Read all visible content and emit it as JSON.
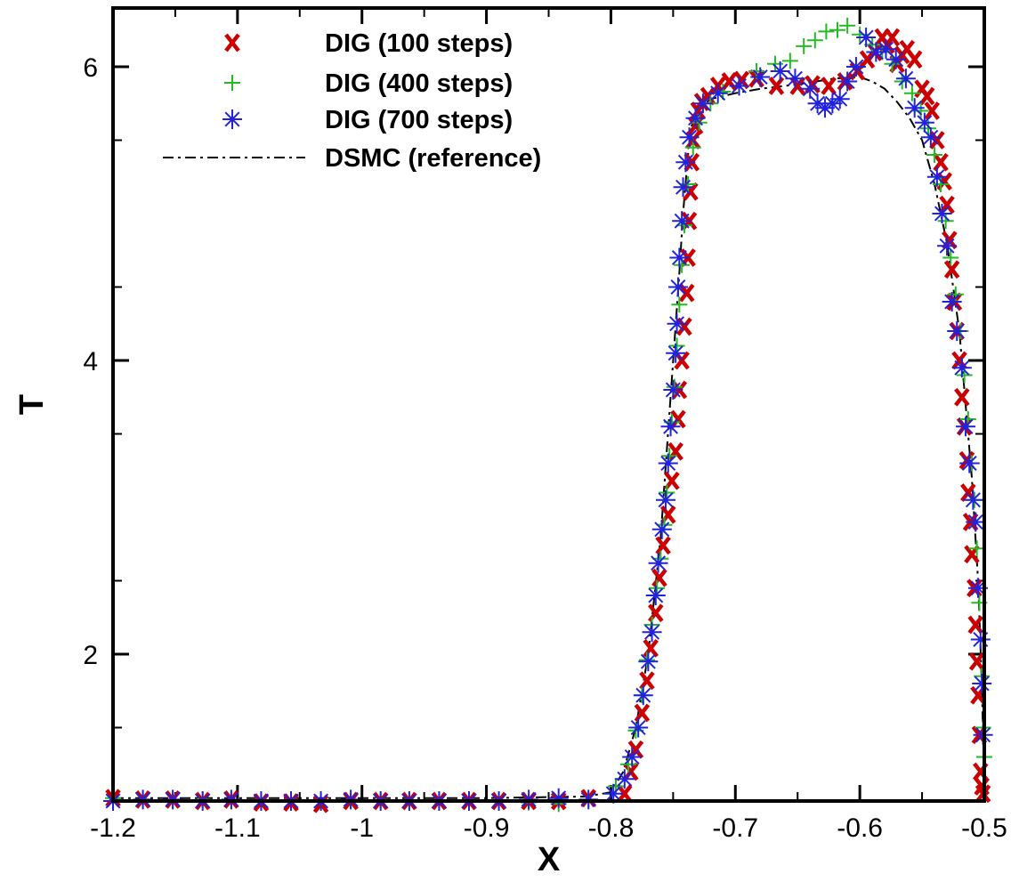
{
  "chart_data": {
    "type": "scatter",
    "title": "",
    "xlabel": "X",
    "ylabel": "T",
    "xlim": [
      -1.2,
      -0.5
    ],
    "ylim": [
      1.0,
      6.4
    ],
    "xticks": [
      -1.2,
      -1.1,
      -1,
      -0.9,
      -0.8,
      -0.7,
      -0.6,
      -0.5
    ],
    "xtick_labels": [
      "-1.2",
      "-1.1",
      "-1",
      "-0.9",
      "-0.8",
      "-0.7",
      "-0.6",
      "-0.5"
    ],
    "yticks": [
      2,
      4,
      6
    ],
    "ytick_labels": [
      "2",
      "4",
      "6"
    ],
    "legend_position": "top-left",
    "series": [
      {
        "name": "DIG (100 steps)",
        "marker": "x",
        "color": "#cc0000",
        "x": [
          -1.2,
          -1.176,
          -1.152,
          -1.128,
          -1.105,
          -1.081,
          -1.057,
          -1.033,
          -1.009,
          -0.985,
          -0.962,
          -0.938,
          -0.914,
          -0.89,
          -0.866,
          -0.842,
          -0.818,
          -0.789,
          -0.784,
          -0.78,
          -0.775,
          -0.771,
          -0.768,
          -0.764,
          -0.761,
          -0.758,
          -0.754,
          -0.751,
          -0.748,
          -0.746,
          -0.745,
          -0.743,
          -0.741,
          -0.739,
          -0.738,
          -0.737,
          -0.736,
          -0.735,
          -0.734,
          -0.732,
          -0.73,
          -0.727,
          -0.722,
          -0.714,
          -0.705,
          -0.695,
          -0.683,
          -0.667,
          -0.65,
          -0.638,
          -0.625,
          -0.612,
          -0.602,
          -0.594,
          -0.588,
          -0.582,
          -0.578,
          -0.574,
          -0.57,
          -0.566,
          -0.562,
          -0.556,
          -0.55,
          -0.546,
          -0.542,
          -0.538,
          -0.535,
          -0.532,
          -0.53,
          -0.528,
          -0.526,
          -0.524,
          -0.522,
          -0.52,
          -0.518,
          -0.516,
          -0.514,
          -0.513,
          -0.511,
          -0.51,
          -0.508,
          -0.507,
          -0.506,
          -0.505,
          -0.504,
          -0.503,
          -0.502,
          -0.501
        ],
        "y": [
          1.02,
          1.01,
          1.01,
          1.0,
          1.01,
          0.99,
          0.99,
          0.98,
          1.0,
          1.0,
          1.0,
          1.0,
          1.0,
          1.0,
          1.0,
          1.0,
          1.02,
          1.05,
          1.2,
          1.35,
          1.6,
          1.82,
          2.04,
          2.28,
          2.52,
          2.74,
          2.95,
          3.18,
          3.38,
          3.6,
          3.8,
          4.0,
          4.23,
          4.46,
          4.7,
          4.95,
          5.15,
          5.35,
          5.5,
          5.6,
          5.7,
          5.76,
          5.8,
          5.87,
          5.9,
          5.91,
          5.92,
          5.87,
          5.87,
          5.88,
          5.87,
          5.9,
          5.97,
          6.05,
          6.1,
          6.2,
          6.15,
          6.2,
          6.02,
          6.08,
          6.12,
          6.05,
          5.85,
          5.8,
          5.7,
          5.5,
          5.35,
          5.22,
          5.06,
          4.82,
          4.62,
          4.4,
          4.2,
          4.0,
          3.75,
          3.55,
          3.32,
          3.1,
          2.9,
          2.68,
          2.45,
          2.2,
          1.95,
          1.72,
          1.45,
          1.2,
          1.1,
          1.05
        ]
      },
      {
        "name": "DIG (400 steps)",
        "marker": "+",
        "color": "#22bb22",
        "x": [
          -1.2,
          -1.176,
          -1.152,
          -1.128,
          -1.105,
          -1.081,
          -1.057,
          -1.033,
          -1.009,
          -0.985,
          -0.962,
          -0.938,
          -0.914,
          -0.89,
          -0.866,
          -0.842,
          -0.818,
          -0.796,
          -0.786,
          -0.78,
          -0.775,
          -0.771,
          -0.767,
          -0.763,
          -0.76,
          -0.757,
          -0.755,
          -0.753,
          -0.751,
          -0.749,
          -0.747,
          -0.745,
          -0.743,
          -0.741,
          -0.738,
          -0.734,
          -0.729,
          -0.72,
          -0.71,
          -0.697,
          -0.683,
          -0.668,
          -0.656,
          -0.645,
          -0.636,
          -0.627,
          -0.618,
          -0.61,
          -0.6,
          -0.59,
          -0.582,
          -0.574,
          -0.566,
          -0.558,
          -0.551,
          -0.545,
          -0.54,
          -0.535,
          -0.531,
          -0.527,
          -0.523,
          -0.519,
          -0.516,
          -0.513,
          -0.51,
          -0.508,
          -0.506,
          -0.504,
          -0.502,
          -0.501,
          -0.5
        ],
        "y": [
          1.02,
          1.01,
          1.0,
          1.01,
          1.0,
          1.0,
          1.0,
          1.0,
          1.0,
          1.0,
          1.0,
          1.0,
          1.0,
          1.0,
          0.99,
          0.98,
          1.01,
          1.1,
          1.25,
          1.48,
          1.72,
          1.96,
          2.2,
          2.45,
          2.65,
          2.88,
          3.1,
          3.35,
          3.58,
          3.82,
          4.1,
          4.38,
          4.65,
          4.92,
          5.2,
          5.45,
          5.62,
          5.75,
          5.83,
          5.87,
          5.97,
          6.02,
          6.04,
          6.14,
          6.18,
          6.24,
          6.25,
          6.28,
          6.22,
          6.15,
          6.1,
          6.02,
          5.9,
          5.82,
          5.7,
          5.58,
          5.4,
          5.2,
          4.95,
          4.7,
          4.45,
          4.2,
          3.9,
          3.6,
          3.3,
          3.05,
          2.72,
          2.35,
          1.85,
          1.5,
          1.3
        ]
      },
      {
        "name": "DIG (700 steps)",
        "marker": "*",
        "color": "#2222dd",
        "x": [
          -1.2,
          -1.176,
          -1.152,
          -1.128,
          -1.105,
          -1.081,
          -1.057,
          -1.033,
          -1.009,
          -0.985,
          -0.962,
          -0.938,
          -0.914,
          -0.89,
          -0.866,
          -0.842,
          -0.818,
          -0.798,
          -0.789,
          -0.783,
          -0.778,
          -0.774,
          -0.77,
          -0.767,
          -0.764,
          -0.762,
          -0.759,
          -0.756,
          -0.754,
          -0.752,
          -0.75,
          -0.748,
          -0.747,
          -0.746,
          -0.745,
          -0.743,
          -0.742,
          -0.74,
          -0.737,
          -0.732,
          -0.726,
          -0.714,
          -0.697,
          -0.68,
          -0.664,
          -0.652,
          -0.64,
          -0.634,
          -0.628,
          -0.622,
          -0.616,
          -0.61,
          -0.603,
          -0.595,
          -0.587,
          -0.579,
          -0.571,
          -0.563,
          -0.556,
          -0.548,
          -0.543,
          -0.538,
          -0.534,
          -0.53,
          -0.526,
          -0.522,
          -0.518,
          -0.515,
          -0.512,
          -0.509,
          -0.507,
          -0.505,
          -0.503,
          -0.502,
          -0.501
        ],
        "y": [
          1.0,
          1.01,
          1.01,
          1.0,
          1.01,
          1.0,
          1.0,
          1.0,
          1.01,
          1.0,
          1.0,
          1.0,
          1.0,
          1.0,
          1.01,
          1.02,
          1.01,
          1.05,
          1.15,
          1.3,
          1.5,
          1.72,
          1.95,
          2.15,
          2.4,
          2.62,
          2.85,
          3.05,
          3.3,
          3.55,
          3.8,
          4.05,
          4.25,
          4.5,
          4.7,
          4.95,
          5.18,
          5.35,
          5.52,
          5.65,
          5.75,
          5.82,
          5.87,
          5.93,
          5.97,
          5.92,
          5.85,
          5.75,
          5.72,
          5.75,
          5.78,
          5.9,
          6.0,
          6.2,
          6.1,
          6.12,
          6.05,
          5.92,
          5.72,
          5.62,
          5.52,
          5.25,
          5.0,
          4.78,
          4.4,
          4.2,
          3.95,
          3.55,
          3.3,
          3.05,
          2.9,
          2.45,
          2.1,
          1.8,
          1.45
        ]
      },
      {
        "name": "DSMC (reference)",
        "marker": "dash-dot-line",
        "color": "#000000",
        "x": [
          -1.2,
          -1.1,
          -1.0,
          -0.9,
          -0.82,
          -0.8,
          -0.79,
          -0.78,
          -0.77,
          -0.76,
          -0.755,
          -0.75,
          -0.745,
          -0.742,
          -0.738,
          -0.735,
          -0.73,
          -0.72,
          -0.7,
          -0.68,
          -0.65,
          -0.62,
          -0.6,
          -0.59,
          -0.58,
          -0.57,
          -0.56,
          -0.55,
          -0.54,
          -0.53,
          -0.52,
          -0.51,
          -0.505,
          -0.502,
          -0.5
        ],
        "y": [
          1.02,
          1.02,
          1.02,
          1.02,
          1.03,
          1.06,
          1.2,
          1.5,
          2.0,
          2.8,
          3.4,
          4.0,
          4.6,
          5.0,
          5.4,
          5.6,
          5.7,
          5.78,
          5.82,
          5.85,
          5.88,
          5.92,
          5.93,
          5.9,
          5.85,
          5.76,
          5.65,
          5.5,
          5.2,
          4.8,
          4.2,
          3.2,
          2.5,
          1.8,
          1.1
        ]
      }
    ]
  }
}
